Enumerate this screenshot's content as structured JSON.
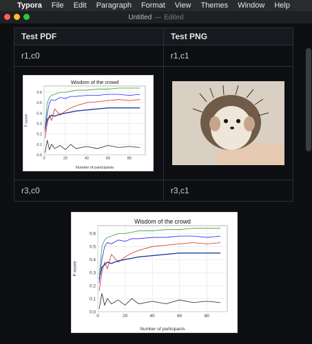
{
  "menubar": {
    "apple": "",
    "app": "Typora",
    "items": [
      "File",
      "Edit",
      "Paragraph",
      "Format",
      "View",
      "Themes",
      "Window",
      "Help"
    ]
  },
  "window": {
    "title": "Untitled",
    "separator": "—",
    "status": "Edited"
  },
  "table": {
    "headers": [
      "Test PDF",
      "Test PNG"
    ],
    "r1": [
      "r1,c0",
      "r1,c1"
    ],
    "r3": [
      "r3,c0",
      "r3,c1"
    ]
  },
  "chart_data": [
    {
      "type": "line",
      "title": "Wisdom of the crowd",
      "xlabel": "Number of participants",
      "ylabel": "F-score",
      "xlim": [
        0,
        95
      ],
      "ylim": [
        0.0,
        0.66
      ],
      "xticks": [
        0,
        20,
        40,
        60,
        80
      ],
      "yticks": [
        0.0,
        0.1,
        0.2,
        0.3,
        0.4,
        0.5,
        0.6
      ],
      "grid": true,
      "series": [
        {
          "color": "#2ca02c",
          "x": [
            1,
            3,
            5,
            7,
            10,
            15,
            20,
            25,
            30,
            40,
            50,
            60,
            70,
            80,
            90
          ],
          "y": [
            0.28,
            0.5,
            0.55,
            0.57,
            0.58,
            0.6,
            0.6,
            0.61,
            0.62,
            0.62,
            0.63,
            0.63,
            0.64,
            0.64,
            0.64
          ]
        },
        {
          "color": "#1f1fff",
          "x": [
            1,
            3,
            5,
            7,
            10,
            15,
            20,
            25,
            30,
            40,
            50,
            60,
            70,
            80,
            90
          ],
          "y": [
            0.22,
            0.4,
            0.5,
            0.53,
            0.52,
            0.55,
            0.54,
            0.56,
            0.56,
            0.57,
            0.57,
            0.58,
            0.58,
            0.57,
            0.58
          ]
        },
        {
          "color": "#d62728",
          "x": [
            1,
            3,
            5,
            7,
            10,
            15,
            20,
            25,
            30,
            40,
            50,
            60,
            70,
            80,
            90
          ],
          "y": [
            0.16,
            0.3,
            0.38,
            0.33,
            0.44,
            0.38,
            0.42,
            0.45,
            0.47,
            0.5,
            0.51,
            0.52,
            0.53,
            0.52,
            0.53
          ]
        },
        {
          "color": "#1f3f9f",
          "x": [
            1,
            3,
            5,
            7,
            10,
            15,
            20,
            25,
            30,
            40,
            50,
            60,
            70,
            80,
            90
          ],
          "y": [
            0.25,
            0.34,
            0.36,
            0.38,
            0.37,
            0.39,
            0.4,
            0.41,
            0.42,
            0.43,
            0.44,
            0.45,
            0.45,
            0.45,
            0.45
          ]
        },
        {
          "color": "#222222",
          "x": [
            1,
            3,
            5,
            7,
            10,
            15,
            20,
            25,
            30,
            40,
            50,
            60,
            70,
            80,
            90
          ],
          "y": [
            0.02,
            0.14,
            0.05,
            0.1,
            0.06,
            0.09,
            0.05,
            0.1,
            0.06,
            0.08,
            0.06,
            0.09,
            0.07,
            0.08,
            0.07
          ]
        }
      ]
    }
  ]
}
